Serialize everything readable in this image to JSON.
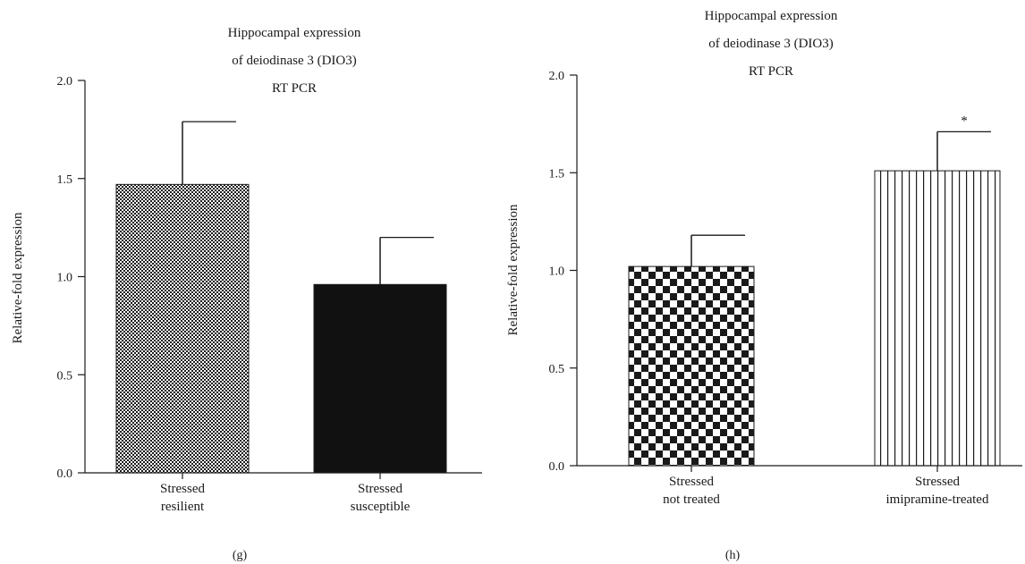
{
  "chart_data": [
    {
      "type": "bar",
      "title_lines": [
        "Hippocampal expression",
        "of deiodinase 3 (DIO3)",
        "RT PCR"
      ],
      "ylabel": "Relative-fold expression",
      "ylim": [
        0,
        2.0
      ],
      "yticks": [
        "0.0",
        "0.5",
        "1.0",
        "1.5",
        "2.0"
      ],
      "categories": [
        {
          "line1": "Stressed",
          "line2": "resilient"
        },
        {
          "line1": "Stressed",
          "line2": "susceptible"
        }
      ],
      "values": [
        1.47,
        0.96
      ],
      "errors": [
        0.32,
        0.24
      ],
      "patterns": [
        "fine-check",
        "solid"
      ],
      "annotations": [
        "",
        ""
      ],
      "panel_label": "(g)"
    },
    {
      "type": "bar",
      "title_lines": [
        "Hippocampal expression",
        "of deiodinase 3 (DIO3)",
        "RT PCR"
      ],
      "ylabel": "Relative-fold expression",
      "ylim": [
        0,
        2.0
      ],
      "yticks": [
        "0.0",
        "0.5",
        "1.0",
        "1.5",
        "2.0"
      ],
      "categories": [
        {
          "line1": "Stressed",
          "line2": "not treated"
        },
        {
          "line1": "Stressed",
          "line2": "imipramine-treated"
        }
      ],
      "values": [
        1.02,
        1.51
      ],
      "errors": [
        0.16,
        0.2
      ],
      "patterns": [
        "coarse-check",
        "vertical-stripes"
      ],
      "annotations": [
        "",
        "*"
      ],
      "panel_label": "(h)"
    }
  ]
}
